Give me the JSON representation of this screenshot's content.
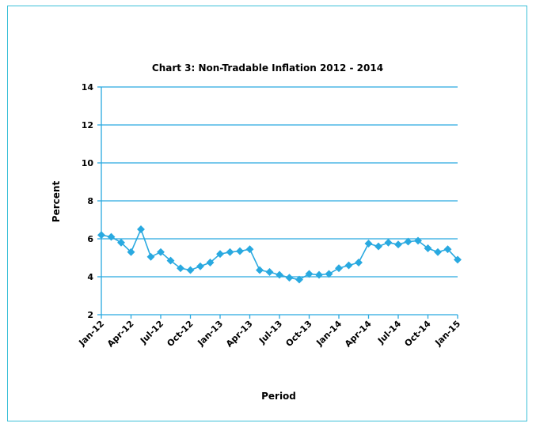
{
  "chart_data": {
    "type": "line",
    "title": "Chart 3: Non-Tradable Inflation 2012 - 2014",
    "xlabel": "Period",
    "ylabel": "Percent",
    "ylim": [
      2,
      14
    ],
    "yticks": [
      2,
      4,
      6,
      8,
      10,
      12,
      14
    ],
    "xlim": [
      "Jan-12",
      "Jan-15"
    ],
    "xticks": [
      "Jan-12",
      "Apr-12",
      "Jul-12",
      "Oct-12",
      "Jan-13",
      "Apr-13",
      "Jul-13",
      "Oct-13",
      "Jan-14",
      "Apr-14",
      "Jul-14",
      "Oct-14",
      "Jan-15"
    ],
    "grid": "horizontal",
    "legend": "none",
    "colors": {
      "series": "#29a9e0",
      "grid": "#29a9e0",
      "border": "#3cc0d8"
    },
    "series": [
      {
        "x": [
          "Jan-12",
          "Feb-12",
          "Mar-12",
          "Apr-12",
          "May-12",
          "Jun-12",
          "Jul-12",
          "Aug-12",
          "Sep-12",
          "Oct-12",
          "Nov-12",
          "Dec-12",
          "Jan-13",
          "Feb-13",
          "Mar-13",
          "Apr-13",
          "May-13",
          "Jun-13",
          "Jul-13",
          "Aug-13",
          "Sep-13",
          "Oct-13",
          "Nov-13",
          "Dec-13",
          "Jan-14",
          "Feb-14",
          "Mar-14",
          "Apr-14",
          "May-14",
          "Jun-14",
          "Jul-14",
          "Aug-14",
          "Sep-14",
          "Oct-14",
          "Nov-14",
          "Dec-14",
          "Jan-15"
        ],
        "values": [
          6.2,
          6.1,
          5.8,
          5.3,
          6.5,
          5.05,
          5.3,
          4.85,
          4.45,
          4.35,
          4.55,
          4.75,
          5.2,
          5.3,
          5.35,
          5.45,
          4.35,
          4.25,
          4.1,
          3.95,
          3.85,
          4.15,
          4.1,
          4.15,
          4.45,
          4.6,
          4.75,
          5.75,
          5.6,
          5.8,
          5.7,
          5.85,
          5.9,
          5.5,
          5.3,
          5.45,
          4.9
        ]
      }
    ]
  }
}
